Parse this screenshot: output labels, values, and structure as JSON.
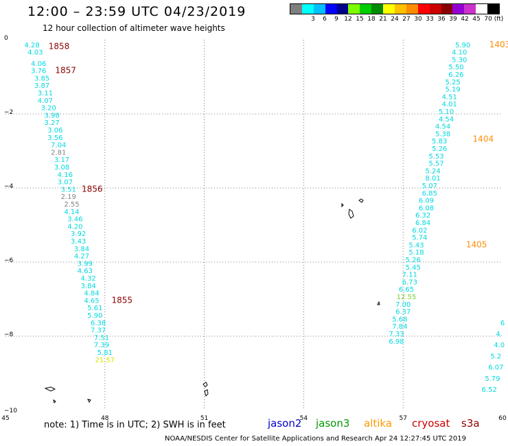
{
  "header": {
    "title": "12:00 – 23:59 UTC 04/23/2019",
    "subtitle": "12 hour collection of altimeter wave heights"
  },
  "legend": {
    "colors": [
      "#7f7f7f",
      "#00ffff",
      "#00bfff",
      "#0000ff",
      "#00008b",
      "#7cfc00",
      "#00cc00",
      "#008b00",
      "#ffff00",
      "#ffc000",
      "#ff8c00",
      "#ff0000",
      "#cc0000",
      "#8b0000",
      "#9400d3",
      "#cc33cc",
      "#ffffff",
      "#000000"
    ],
    "labels": [
      "3",
      "6",
      "9",
      "12",
      "15",
      "18",
      "21",
      "24",
      "27",
      "30",
      "33",
      "36",
      "39",
      "42",
      "45",
      "70 (ft)"
    ]
  },
  "note": "note:  1) Time is in UTC; 2) SWH is in feet",
  "satellites": [
    {
      "name": "jason2",
      "color": "#0000cc"
    },
    {
      "name": "jason3",
      "color": "#009900"
    },
    {
      "name": "altika",
      "color": "#ff9900"
    },
    {
      "name": "cryosat",
      "color": "#cc0000"
    },
    {
      "name": "s3a",
      "color": "#8b0000"
    }
  ],
  "footer": "NOAA/NESDIS Center for Satellite Applications and Research    Apr 24 12:27:45 UTC 2019",
  "chart_data": {
    "type": "scatter",
    "title": "12:00 – 23:59 UTC 04/23/2019",
    "subtitle": "12 hour collection of altimeter wave heights",
    "xlim": [
      45,
      60
    ],
    "ylim": [
      -10,
      0
    ],
    "x_ticks": [
      "45",
      "48",
      "51",
      "54",
      "57",
      "60"
    ],
    "y_ticks": [
      "0",
      "−2",
      "−4",
      "−6",
      "−8",
      "−10"
    ],
    "grid": true,
    "swh_colors": {
      "cyan": "#00d8e0",
      "gray": "#808080",
      "green": "#7fd03a",
      "yellow": "#e0e000"
    },
    "time_colors": {
      "s3a": "#8b0000",
      "altika": "#ff8c00"
    },
    "track_west": [
      {
        "lon": 45.8,
        "lat": -0.2,
        "v": "4.28",
        "c": "cyan"
      },
      {
        "lon": 45.9,
        "lat": -0.4,
        "v": "4.03",
        "c": "cyan"
      },
      {
        "lon": 46.0,
        "lat": -0.7,
        "v": "4.06",
        "c": "cyan"
      },
      {
        "lon": 46.0,
        "lat": -0.9,
        "v": "3.76",
        "c": "cyan"
      },
      {
        "lon": 46.1,
        "lat": -1.1,
        "v": "3.85",
        "c": "cyan"
      },
      {
        "lon": 46.1,
        "lat": -1.3,
        "v": "3.87",
        "c": "cyan"
      },
      {
        "lon": 46.2,
        "lat": -1.5,
        "v": "3.11",
        "c": "cyan"
      },
      {
        "lon": 46.2,
        "lat": -1.7,
        "v": "4.07",
        "c": "cyan"
      },
      {
        "lon": 46.3,
        "lat": -1.9,
        "v": "3.20",
        "c": "cyan"
      },
      {
        "lon": 46.4,
        "lat": -2.1,
        "v": "3.98",
        "c": "cyan"
      },
      {
        "lon": 46.4,
        "lat": -2.3,
        "v": "3.27",
        "c": "cyan"
      },
      {
        "lon": 46.5,
        "lat": -2.5,
        "v": "3.06",
        "c": "cyan"
      },
      {
        "lon": 46.5,
        "lat": -2.7,
        "v": "3.56",
        "c": "cyan"
      },
      {
        "lon": 46.6,
        "lat": -2.9,
        "v": "7.04",
        "c": "cyan"
      },
      {
        "lon": 46.6,
        "lat": -3.1,
        "v": "2.81",
        "c": "gray"
      },
      {
        "lon": 46.7,
        "lat": -3.3,
        "v": "3.17",
        "c": "cyan"
      },
      {
        "lon": 46.7,
        "lat": -3.5,
        "v": "3.08",
        "c": "cyan"
      },
      {
        "lon": 46.8,
        "lat": -3.7,
        "v": "4.16",
        "c": "cyan"
      },
      {
        "lon": 46.8,
        "lat": -3.9,
        "v": "3.07",
        "c": "cyan"
      },
      {
        "lon": 46.9,
        "lat": -4.1,
        "v": "3.51",
        "c": "cyan"
      },
      {
        "lon": 46.9,
        "lat": -4.3,
        "v": "2.19",
        "c": "gray"
      },
      {
        "lon": 47.0,
        "lat": -4.5,
        "v": "2.55",
        "c": "gray"
      },
      {
        "lon": 47.0,
        "lat": -4.7,
        "v": "4.14",
        "c": "cyan"
      },
      {
        "lon": 47.1,
        "lat": -4.9,
        "v": "3.46",
        "c": "cyan"
      },
      {
        "lon": 47.1,
        "lat": -5.1,
        "v": "4.20",
        "c": "cyan"
      },
      {
        "lon": 47.2,
        "lat": -5.3,
        "v": "3.92",
        "c": "cyan"
      },
      {
        "lon": 47.2,
        "lat": -5.5,
        "v": "3.43",
        "c": "cyan"
      },
      {
        "lon": 47.3,
        "lat": -5.7,
        "v": "3.84",
        "c": "cyan"
      },
      {
        "lon": 47.3,
        "lat": -5.9,
        "v": "4.27",
        "c": "cyan"
      },
      {
        "lon": 47.4,
        "lat": -6.1,
        "v": "3.99",
        "c": "cyan"
      },
      {
        "lon": 47.4,
        "lat": -6.3,
        "v": "4.63",
        "c": "cyan"
      },
      {
        "lon": 47.5,
        "lat": -6.5,
        "v": "4.32",
        "c": "cyan"
      },
      {
        "lon": 47.5,
        "lat": -6.7,
        "v": "3.84",
        "c": "cyan"
      },
      {
        "lon": 47.6,
        "lat": -6.9,
        "v": "4.84",
        "c": "cyan"
      },
      {
        "lon": 47.6,
        "lat": -7.1,
        "v": "4.65",
        "c": "cyan"
      },
      {
        "lon": 47.7,
        "lat": -7.3,
        "v": "5.61",
        "c": "cyan"
      },
      {
        "lon": 47.7,
        "lat": -7.5,
        "v": "5.90",
        "c": "cyan"
      },
      {
        "lon": 47.8,
        "lat": -7.7,
        "v": "6.38",
        "c": "cyan"
      },
      {
        "lon": 47.8,
        "lat": -7.9,
        "v": "7.37",
        "c": "cyan"
      },
      {
        "lon": 47.9,
        "lat": -8.1,
        "v": "7.51",
        "c": "cyan"
      },
      {
        "lon": 47.9,
        "lat": -8.3,
        "v": "7.39",
        "c": "cyan"
      },
      {
        "lon": 48.0,
        "lat": -8.5,
        "v": "5.81",
        "c": "cyan"
      },
      {
        "lon": 48.0,
        "lat": -8.7,
        "v": "21.57",
        "c": "yellow"
      }
    ],
    "track_east": [
      {
        "lon": 58.8,
        "lat": -0.2,
        "v": "5.90",
        "c": "cyan"
      },
      {
        "lon": 58.7,
        "lat": -0.4,
        "v": "4.10",
        "c": "cyan"
      },
      {
        "lon": 58.7,
        "lat": -0.6,
        "v": "5.30",
        "c": "cyan"
      },
      {
        "lon": 58.6,
        "lat": -0.8,
        "v": "5.50",
        "c": "cyan"
      },
      {
        "lon": 58.6,
        "lat": -1.0,
        "v": "6.26",
        "c": "cyan"
      },
      {
        "lon": 58.5,
        "lat": -1.2,
        "v": "5.25",
        "c": "cyan"
      },
      {
        "lon": 58.5,
        "lat": -1.4,
        "v": "5.19",
        "c": "cyan"
      },
      {
        "lon": 58.4,
        "lat": -1.6,
        "v": "4.51",
        "c": "cyan"
      },
      {
        "lon": 58.4,
        "lat": -1.8,
        "v": "4.01",
        "c": "cyan"
      },
      {
        "lon": 58.3,
        "lat": -2.0,
        "v": "5.10",
        "c": "cyan"
      },
      {
        "lon": 58.3,
        "lat": -2.2,
        "v": "4.54",
        "c": "cyan"
      },
      {
        "lon": 58.2,
        "lat": -2.4,
        "v": "4.54",
        "c": "cyan"
      },
      {
        "lon": 58.2,
        "lat": -2.6,
        "v": "5.38",
        "c": "cyan"
      },
      {
        "lon": 58.1,
        "lat": -2.8,
        "v": "5.83",
        "c": "cyan"
      },
      {
        "lon": 58.1,
        "lat": -3.0,
        "v": "5.26",
        "c": "cyan"
      },
      {
        "lon": 58.0,
        "lat": -3.2,
        "v": "5.53",
        "c": "cyan"
      },
      {
        "lon": 58.0,
        "lat": -3.4,
        "v": "5.57",
        "c": "cyan"
      },
      {
        "lon": 57.9,
        "lat": -3.6,
        "v": "5.24",
        "c": "cyan"
      },
      {
        "lon": 57.9,
        "lat": -3.8,
        "v": "8.01",
        "c": "cyan"
      },
      {
        "lon": 57.8,
        "lat": -4.0,
        "v": "5.07",
        "c": "cyan"
      },
      {
        "lon": 57.8,
        "lat": -4.2,
        "v": "6.85",
        "c": "cyan"
      },
      {
        "lon": 57.7,
        "lat": -4.4,
        "v": "6.09",
        "c": "cyan"
      },
      {
        "lon": 57.7,
        "lat": -4.6,
        "v": "6.08",
        "c": "cyan"
      },
      {
        "lon": 57.6,
        "lat": -4.8,
        "v": "6.32",
        "c": "cyan"
      },
      {
        "lon": 57.6,
        "lat": -5.0,
        "v": "6.84",
        "c": "cyan"
      },
      {
        "lon": 57.5,
        "lat": -5.2,
        "v": "6.02",
        "c": "cyan"
      },
      {
        "lon": 57.5,
        "lat": -5.4,
        "v": "5.74",
        "c": "cyan"
      },
      {
        "lon": 57.4,
        "lat": -5.6,
        "v": "5.43",
        "c": "cyan"
      },
      {
        "lon": 57.4,
        "lat": -5.8,
        "v": "5.18",
        "c": "cyan"
      },
      {
        "lon": 57.3,
        "lat": -6.0,
        "v": "5.26",
        "c": "cyan"
      },
      {
        "lon": 57.3,
        "lat": -6.2,
        "v": "5.45",
        "c": "cyan"
      },
      {
        "lon": 57.2,
        "lat": -6.4,
        "v": "7.11",
        "c": "cyan"
      },
      {
        "lon": 57.2,
        "lat": -6.6,
        "v": "6.73",
        "c": "cyan"
      },
      {
        "lon": 57.1,
        "lat": -6.8,
        "v": "6.65",
        "c": "cyan"
      },
      {
        "lon": 57.1,
        "lat": -7.0,
        "v": "12.55",
        "c": "green"
      },
      {
        "lon": 57.0,
        "lat": -7.2,
        "v": "7.00",
        "c": "cyan"
      },
      {
        "lon": 57.0,
        "lat": -7.4,
        "v": "6.37",
        "c": "cyan"
      },
      {
        "lon": 56.9,
        "lat": -7.6,
        "v": "5.68",
        "c": "cyan"
      },
      {
        "lon": 56.9,
        "lat": -7.8,
        "v": "7.84",
        "c": "cyan"
      },
      {
        "lon": 56.8,
        "lat": -8.0,
        "v": "7.33",
        "c": "cyan"
      },
      {
        "lon": 56.8,
        "lat": -8.2,
        "v": "6.98",
        "c": "cyan"
      }
    ],
    "track_edge": [
      {
        "lon": 60.0,
        "lat": -7.7,
        "v": "6",
        "c": "cyan"
      },
      {
        "lon": 59.9,
        "lat": -8.0,
        "v": "4.",
        "c": "cyan"
      },
      {
        "lon": 59.9,
        "lat": -8.3,
        "v": "4.0",
        "c": "cyan"
      },
      {
        "lon": 59.8,
        "lat": -8.6,
        "v": "5.2",
        "c": "cyan"
      },
      {
        "lon": 59.8,
        "lat": -8.9,
        "v": "6.07",
        "c": "cyan"
      },
      {
        "lon": 59.7,
        "lat": -9.2,
        "v": "5.79",
        "c": "cyan"
      },
      {
        "lon": 59.6,
        "lat": -9.5,
        "v": "6.52",
        "c": "cyan"
      }
    ],
    "time_labels": [
      {
        "lon": 46.3,
        "lat": -0.25,
        "t": "1858",
        "s": "s3a"
      },
      {
        "lon": 46.5,
        "lat": -0.9,
        "t": "1857",
        "s": "s3a"
      },
      {
        "lon": 47.3,
        "lat": -4.1,
        "t": "1856",
        "s": "s3a"
      },
      {
        "lon": 48.2,
        "lat": -7.1,
        "t": "1855",
        "s": "s3a"
      },
      {
        "lon": 59.6,
        "lat": -0.2,
        "t": "1403",
        "s": "altika"
      },
      {
        "lon": 59.1,
        "lat": -2.75,
        "t": "1404",
        "s": "altika"
      },
      {
        "lon": 58.9,
        "lat": -5.6,
        "t": "1405",
        "s": "altika"
      }
    ]
  }
}
